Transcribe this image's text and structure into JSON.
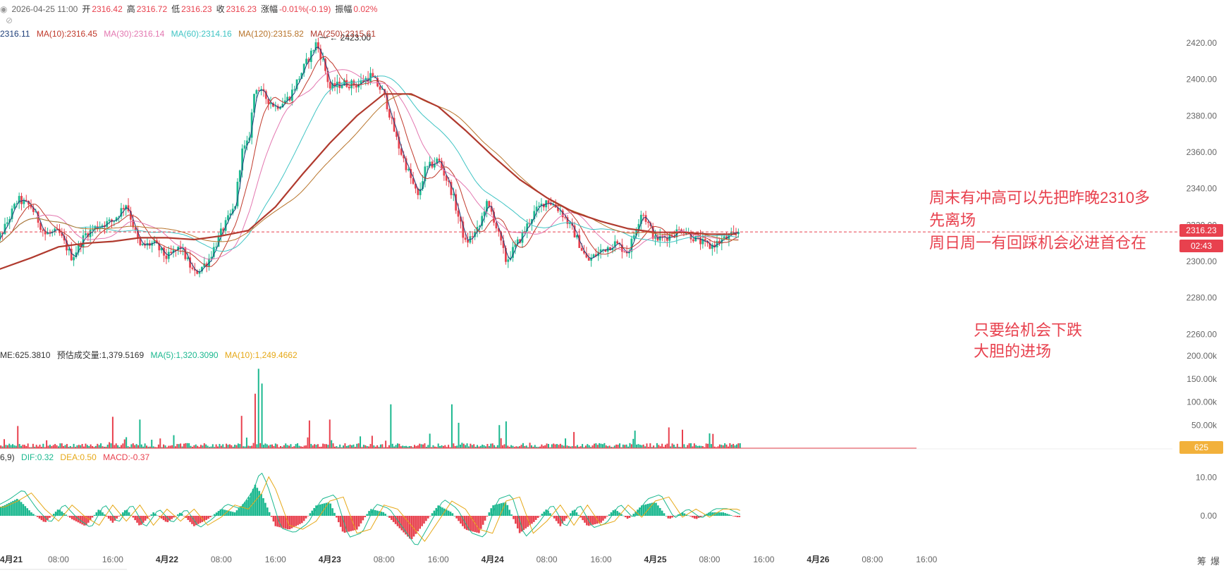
{
  "ohlc": {
    "datetime": "2026-04-25 11:00",
    "open_label": "开",
    "open": "2316.42",
    "high_label": "高",
    "high": "2316.72",
    "low_label": "低",
    "low": "2316.23",
    "close_label": "收",
    "close": "2316.23",
    "change_label": "涨幅",
    "change": "-0.01%(-0.19)",
    "amp_label": "振幅",
    "amp": "0.02%"
  },
  "ma_legend": [
    {
      "text": "2316.11",
      "color": "#1f3f7a"
    },
    {
      "text": "MA(10):2316.45",
      "color": "#c0392b"
    },
    {
      "text": "MA(30):2316.14",
      "color": "#e377b0"
    },
    {
      "text": "MA(60):2314.16",
      "color": "#3fc4c4"
    },
    {
      "text": "MA(120):2315.82",
      "color": "#b8742b"
    },
    {
      "text": "MA(250):2315.61",
      "color": "#b03a2e"
    }
  ],
  "vol_legend": [
    {
      "text": "ME:625.3810",
      "color": "#333333"
    },
    {
      "text": "预估成交量:1,379.5169",
      "color": "#333333"
    },
    {
      "text": "MA(5):1,320.3090",
      "color": "#1bb88f"
    },
    {
      "text": "MA(10):1,249.4662",
      "color": "#e6a817"
    }
  ],
  "macd_legend": [
    {
      "text": "6,9)",
      "color": "#333333"
    },
    {
      "text": "DIF:0.32",
      "color": "#1bb88f"
    },
    {
      "text": "DEA:0.50",
      "color": "#e6a817"
    },
    {
      "text": "MACD:-0.37",
      "color": "#e8414e"
    }
  ],
  "notes": {
    "line1": "周末有冲高可以先把昨晚2310多",
    "line2": "先离场",
    "line3": "周日周一有回踩机会必进首仓在",
    "line4": "只要给机会下跌",
    "line5": "大胆的进场"
  },
  "tags": {
    "price": "2316.23",
    "countdown": "02:43",
    "volume": "625"
  },
  "footer_icons": [
    "筹",
    "爆"
  ],
  "chart_data": [
    {
      "type": "candlestick",
      "title": "",
      "xlabel": "",
      "ylabel": "",
      "ylim": [
        2252,
        2432
      ],
      "y_ticks": [
        2420,
        2400,
        2380,
        2360,
        2340,
        2320,
        2300,
        2280,
        2260
      ],
      "y_tick_labels": [
        "2420.00",
        "2400.00",
        "2380.00",
        "2360.00",
        "2340.00",
        "2320.00",
        "2300.00",
        "2280.00",
        "2260.00"
      ],
      "x_ticks": [
        "4月21",
        "08:00",
        "16:00",
        "4月22",
        "08:00",
        "16:00",
        "4月23",
        "08:00",
        "16:00",
        "4月24",
        "08:00",
        "16:00",
        "4月25",
        "08:00",
        "16:00",
        "4月26",
        "08:00",
        "16:00"
      ],
      "x_tick_hours": [
        0,
        8,
        16,
        24,
        32,
        40,
        48,
        56,
        64,
        72,
        80,
        88,
        96,
        104,
        112,
        120,
        128,
        136
      ],
      "price_path": {
        "hours": [
          -2,
          0,
          2,
          4,
          6,
          8,
          10,
          12,
          14,
          16,
          18,
          20,
          22,
          24,
          26,
          28,
          30,
          32,
          34,
          35,
          36,
          37,
          38,
          40,
          42,
          44,
          46,
          47,
          48,
          50,
          52,
          54,
          56,
          58,
          60,
          61,
          62,
          64,
          66,
          68,
          70,
          71,
          72,
          74,
          76,
          78,
          80,
          82,
          84,
          86,
          88,
          90,
          92,
          94,
          96,
          98,
          100,
          102,
          104,
          106,
          108
        ],
        "values": [
          2305,
          2318,
          2334,
          2330,
          2315,
          2316,
          2302,
          2315,
          2320,
          2322,
          2332,
          2308,
          2310,
          2302,
          2308,
          2293,
          2300,
          2316,
          2330,
          2360,
          2365,
          2397,
          2392,
          2385,
          2390,
          2405,
          2420,
          2410,
          2395,
          2398,
          2397,
          2402,
          2392,
          2365,
          2345,
          2335,
          2350,
          2356,
          2338,
          2310,
          2318,
          2332,
          2326,
          2300,
          2312,
          2326,
          2334,
          2328,
          2316,
          2300,
          2306,
          2310,
          2305,
          2328,
          2312,
          2314,
          2318,
          2312,
          2308,
          2312,
          2315
        ]
      },
      "extremes": {
        "high": 2423.0,
        "high_label": "2423.00",
        "high_hour": 46.5,
        "low": 2283,
        "low_hour": 74
      },
      "last_price": 2316.23,
      "series": [
        {
          "name": "MA(10)",
          "color": "#c0392b"
        },
        {
          "name": "MA(30)",
          "color": "#e377b0"
        },
        {
          "name": "MA(60)",
          "color": "#3fc4c4"
        },
        {
          "name": "MA(120)",
          "color": "#b8742b"
        },
        {
          "name": "MA(250)",
          "color": "#b03a2e",
          "hours": [
            -2,
            4,
            8,
            12,
            16,
            20,
            24,
            28,
            32,
            36,
            40,
            44,
            48,
            52,
            56,
            58,
            60,
            64,
            68,
            72,
            76,
            80,
            84,
            88,
            92,
            96,
            100,
            104,
            108
          ],
          "values": [
            2294,
            2302,
            2308,
            2310,
            2311,
            2313,
            2313,
            2312,
            2314,
            2317,
            2330,
            2348,
            2365,
            2380,
            2392,
            2392,
            2392,
            2385,
            2372,
            2358,
            2345,
            2335,
            2327,
            2322,
            2318,
            2316,
            2316,
            2315,
            2315
          ]
        }
      ]
    },
    {
      "type": "bar",
      "title": "",
      "ylim": [
        0,
        200000
      ],
      "y_ticks": [
        200000,
        150000,
        100000,
        50000
      ],
      "y_tick_labels": [
        "200.00k",
        "150.00k",
        "100.00k",
        "50.00k"
      ],
      "last_value": 625,
      "spikes": [
        {
          "hour": 2,
          "value": 48000
        },
        {
          "hour": 16,
          "value": 68000
        },
        {
          "hour": 20,
          "value": 62000
        },
        {
          "hour": 35,
          "value": 70000
        },
        {
          "hour": 37,
          "value": 118000
        },
        {
          "hour": 37.5,
          "value": 172000
        },
        {
          "hour": 38,
          "value": 140000
        },
        {
          "hour": 45,
          "value": 60000
        },
        {
          "hour": 48,
          "value": 62000
        },
        {
          "hour": 57,
          "value": 95000
        },
        {
          "hour": 66,
          "value": 95000
        },
        {
          "hour": 67,
          "value": 55000
        },
        {
          "hour": 73,
          "value": 50000
        },
        {
          "hour": 74,
          "value": 58000
        },
        {
          "hour": 84,
          "value": 35000
        },
        {
          "hour": 93,
          "value": 38000
        },
        {
          "hour": 98,
          "value": 45000
        },
        {
          "hour": 100,
          "value": 40000
        },
        {
          "hour": 104,
          "value": 32000
        }
      ]
    },
    {
      "type": "bar",
      "title": "",
      "ylim": [
        -12,
        18
      ],
      "y_ticks": [
        10,
        0
      ],
      "y_tick_labels": [
        "10.00",
        "0.00"
      ],
      "macd_path": {
        "hours": [
          -2,
          0,
          2,
          4,
          6,
          8,
          10,
          12,
          14,
          16,
          18,
          20,
          22,
          24,
          26,
          28,
          30,
          32,
          34,
          36,
          37,
          38,
          40,
          42,
          44,
          46,
          48,
          50,
          52,
          54,
          56,
          58,
          60,
          62,
          64,
          66,
          68,
          70,
          72,
          74,
          76,
          78,
          80,
          82,
          84,
          86,
          88,
          90,
          92,
          94,
          96,
          98,
          100,
          102,
          104,
          106,
          108
        ],
        "values": [
          1.5,
          3,
          5,
          1,
          -2,
          2,
          -1,
          -3,
          2,
          -2,
          2,
          -3,
          1,
          -2,
          1,
          -3,
          -1,
          2,
          1,
          5,
          9,
          6,
          -3,
          -4,
          -2,
          3,
          4,
          -5,
          -4,
          2,
          1,
          -3,
          -7,
          -2,
          3,
          1,
          -4,
          -5,
          3,
          4,
          -5,
          -2,
          2,
          -3,
          2,
          -3,
          -2,
          2,
          -1,
          3,
          4,
          -1,
          1,
          -1,
          1,
          1,
          -0.37
        ]
      }
    }
  ]
}
